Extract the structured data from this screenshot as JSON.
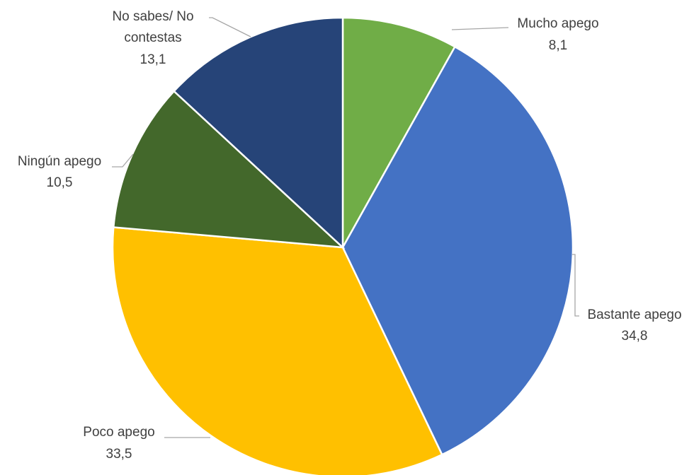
{
  "chart_data": {
    "type": "pie",
    "title": "",
    "categories": [
      "Mucho apego",
      "Bastante apego",
      "Poco apego",
      "Ningún apego",
      "No sabes/ No contestas"
    ],
    "values": [
      8.1,
      34.8,
      33.5,
      10.5,
      13.1
    ],
    "value_labels": [
      "8,1",
      "34,8",
      "33,5",
      "10,5",
      "13,1"
    ],
    "colors": [
      "#70ad47",
      "#4472c4",
      "#ffc000",
      "#43682b",
      "#264478"
    ],
    "start_angle_deg": 0,
    "direction": "clockwise",
    "legend": "none"
  }
}
